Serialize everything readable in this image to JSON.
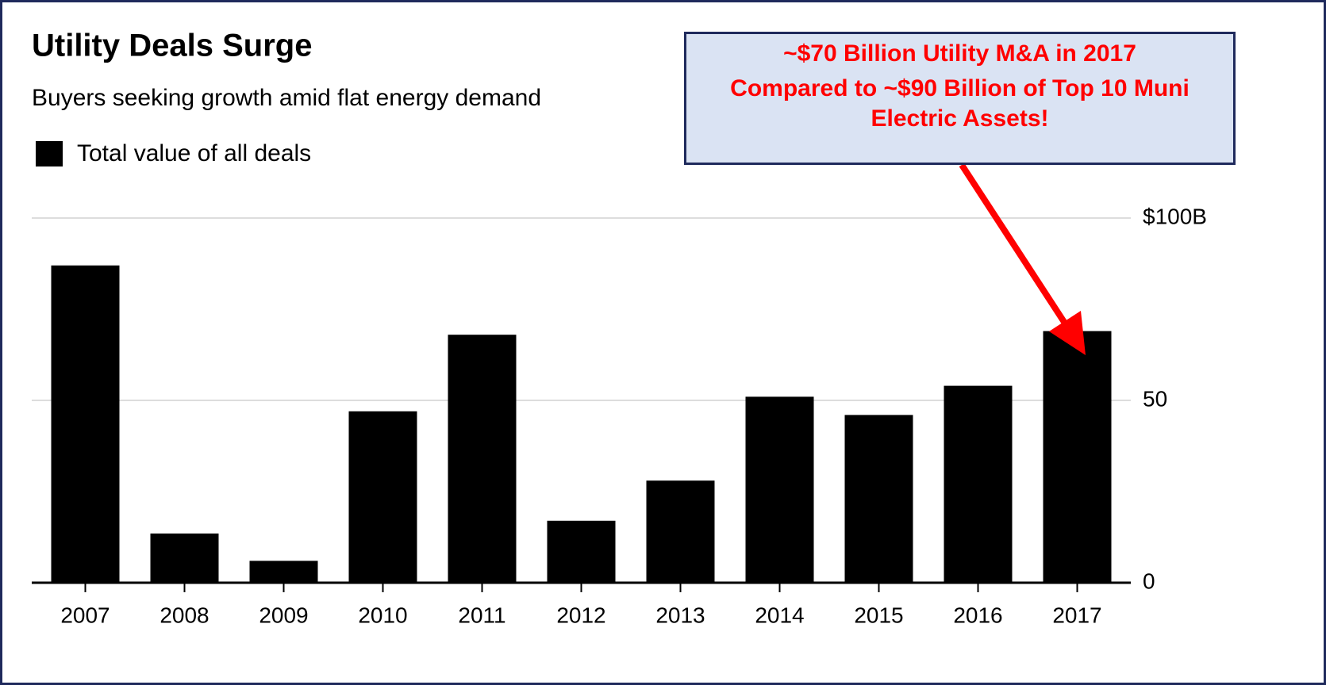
{
  "chart_data": {
    "type": "bar",
    "title": "Utility Deals Surge",
    "subtitle": "Buyers seeking growth amid flat energy demand",
    "categories": [
      "2007",
      "2008",
      "2009",
      "2010",
      "2011",
      "2012",
      "2013",
      "2014",
      "2015",
      "2016",
      "2017"
    ],
    "series": [
      {
        "name": "Total value of all deals",
        "color": "#000000",
        "values": [
          87,
          13.5,
          6,
          47,
          68,
          17,
          28,
          51,
          46,
          54,
          69
        ]
      }
    ],
    "ylim": [
      0,
      100
    ],
    "yticks": [
      0,
      50,
      {
        "value": 100,
        "label": "$100B"
      }
    ],
    "grid": true,
    "annotations": [
      "~$70 Billion Utility M&A in 2017",
      "Compared to ~$90 Billion of Top 10 Muni Electric Assets!"
    ]
  }
}
